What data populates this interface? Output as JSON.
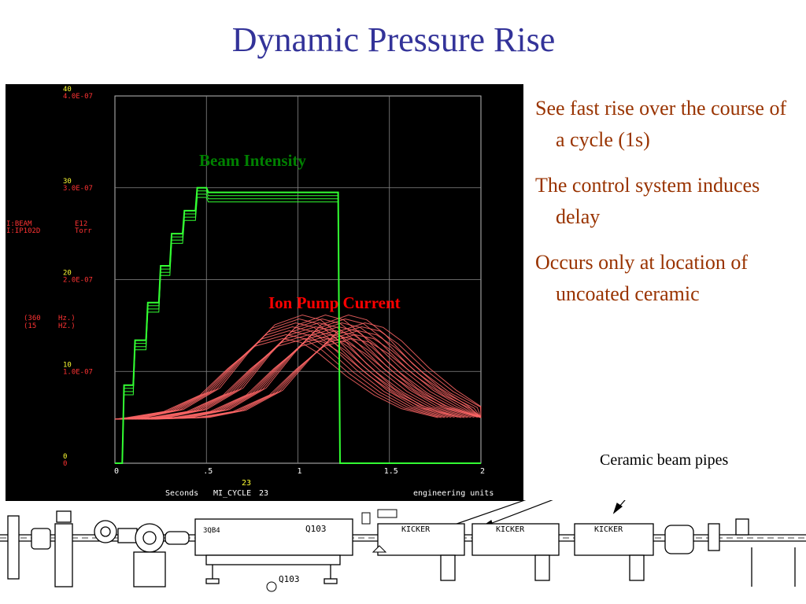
{
  "title": "Dynamic Pressure Rise",
  "bullets": [
    "See fast rise over the course of a cycle (1s)",
    "The control system induces delay",
    "Occurs only at location of uncoated ceramic"
  ],
  "caption": "Ceramic beam pipes",
  "colors": {
    "title": "#333399",
    "bullet_text": "#993300",
    "beam_trace": "#33ff33",
    "ion_trace": "#ff6666",
    "beam_label": "#008000",
    "ion_label": "#ff0000",
    "axis_text": "#ff3333",
    "scope_bg": "#000000",
    "tick_yellow": "#ffff33"
  },
  "chart_data": {
    "type": "line",
    "annotations": {
      "beam": "Beam Intensity",
      "ion": "Ion Pump Current"
    },
    "xlim": [
      0,
      2
    ],
    "x_ticks": [
      "0",
      ".5",
      "1",
      "1.5",
      "2"
    ],
    "y_ticks_left_top": [
      "0",
      "10",
      "20",
      "30",
      "40"
    ],
    "y_ticks_left_bottom": [
      "0",
      "1.0E-07",
      "2.0E-07",
      "3.0E-07",
      "4.0E-07"
    ],
    "channels": [
      {
        "name": "I:BEAM",
        "unit": "E12",
        "rate": "(360",
        "rate_unit": "Hz.)"
      },
      {
        "name": "I:IP102D",
        "unit": "Torr",
        "rate": "(15",
        "rate_unit": "HZ.)"
      }
    ],
    "footer": {
      "xunit": "Seconds",
      "event": "MI_CYCLE",
      "event_num": "23",
      "event_marker": "23",
      "units": "engineering units"
    },
    "grid": true,
    "series": [
      {
        "name": "I:BEAM",
        "x": [
          0.0,
          0.04,
          0.05,
          0.1,
          0.11,
          0.17,
          0.18,
          0.24,
          0.25,
          0.3,
          0.31,
          0.37,
          0.38,
          0.44,
          0.45,
          0.5,
          0.51,
          1.22,
          1.23,
          2.0
        ],
        "y": [
          0,
          0,
          8.5,
          8.5,
          13.4,
          13.4,
          17.5,
          17.5,
          21.5,
          21.5,
          25,
          25,
          27.5,
          27.5,
          30,
          30,
          29.5,
          29.5,
          0,
          0
        ]
      },
      {
        "name": "I:IP102D",
        "x": [
          0.0,
          0.3,
          0.5,
          0.7,
          0.85,
          1.0,
          1.15,
          1.25,
          1.35,
          1.5,
          1.65,
          1.8,
          2.0
        ],
        "y": [
          4.8e-08,
          5e-08,
          5.8e-08,
          8e-08,
          1.15e-07,
          1.45e-07,
          1.55e-07,
          1.5e-07,
          1.35e-07,
          1.05e-07,
          8e-08,
          6.2e-08,
          5e-08
        ]
      }
    ]
  },
  "schematic_labels": {
    "magnet_a": "3QB4",
    "magnet_b": "Q103",
    "magnet_c": "Q103",
    "kickers": [
      "KICKER",
      "KICKER",
      "KICKER"
    ]
  }
}
